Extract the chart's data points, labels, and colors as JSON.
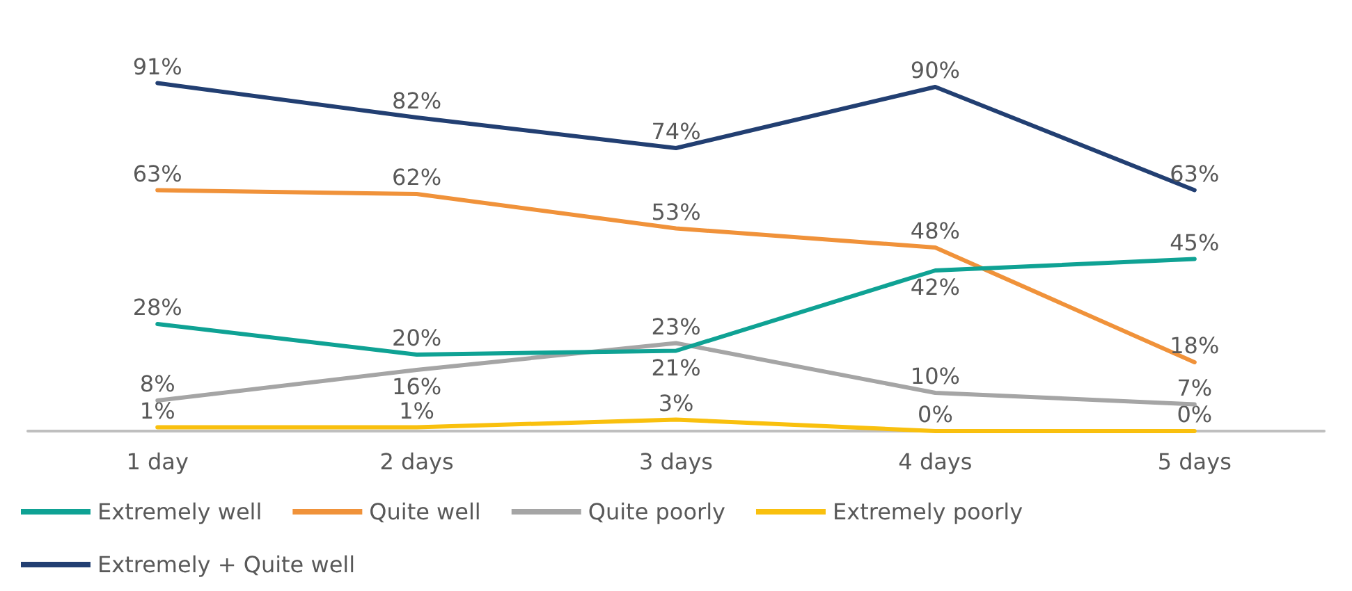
{
  "chart_data": {
    "type": "line",
    "categories": [
      "1 day",
      "2 days",
      "3 days",
      "4 days",
      "5 days"
    ],
    "series": [
      {
        "name": "Extremely well",
        "color": "#0fa294",
        "values": [
          28,
          20,
          21,
          42,
          45
        ],
        "value_labels": [
          "28%",
          "20%",
          "21%",
          "42%",
          "45%"
        ]
      },
      {
        "name": "Quite well",
        "color": "#f0923a",
        "values": [
          63,
          62,
          53,
          48,
          18
        ],
        "value_labels": [
          "63%",
          "62%",
          "53%",
          "48%",
          "18%"
        ]
      },
      {
        "name": "Quite poorly",
        "color": "#a5a5a5",
        "values": [
          8,
          16,
          23,
          10,
          7
        ],
        "value_labels": [
          "8%",
          "16%",
          "23%",
          "10%",
          "7%"
        ]
      },
      {
        "name": "Extremely poorly",
        "color": "#f9c00e",
        "values": [
          1,
          1,
          3,
          0,
          0
        ],
        "value_labels": [
          "1%",
          "1%",
          "3%",
          "0%",
          "0%"
        ]
      },
      {
        "name": "Extremely + Quite well",
        "color": "#223f72",
        "values": [
          91,
          82,
          74,
          90,
          63
        ],
        "value_labels": [
          "91%",
          "82%",
          "74%",
          "90%",
          "63%"
        ]
      }
    ],
    "grid": false,
    "legend": "bottom",
    "marker": "none",
    "line_style": "solid",
    "tick_labels": "x"
  }
}
